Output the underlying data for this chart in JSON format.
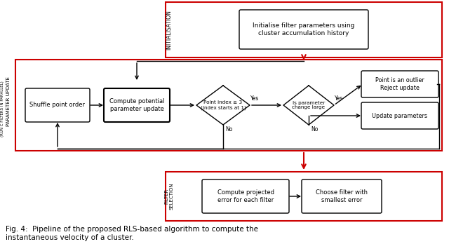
{
  "bg_color": "#ffffff",
  "fig_width": 6.4,
  "fig_height": 3.48,
  "caption": "Fig. 4:  Pipeline of the proposed RLS-based algorithm to compute the\ninstantaneous velocity of a cluster.",
  "red": "#cc0000",
  "blk": "#000000",
  "wht": "#ffffff",
  "init_label": "INITIALISATION",
  "param_label1": "PARAMETER UPDATE",
  "param_label2": "(RUN C FILTERS IN PARALLEL)",
  "filter_label": "FILTER\nSELECTION",
  "box1_text": "Initialise filter parameters using\ncluster accumulation history",
  "box2_text": "Shuffle point order",
  "box3_text": "Compute potential\nparameter update",
  "dia1_text": "Point index ≥ 3\n(Index starts at 1)",
  "dia2_text": "Is parameter\nchange large",
  "box4_text": "Point is an outlier\nReject update",
  "box5_text": "Update parameters",
  "box6_text": "Compute projected\nerror for each filter",
  "box7_text": "Choose filter with\nsmallest error",
  "yes1": "Yes",
  "yes2": "Yes",
  "no1": "No",
  "no2": "No"
}
